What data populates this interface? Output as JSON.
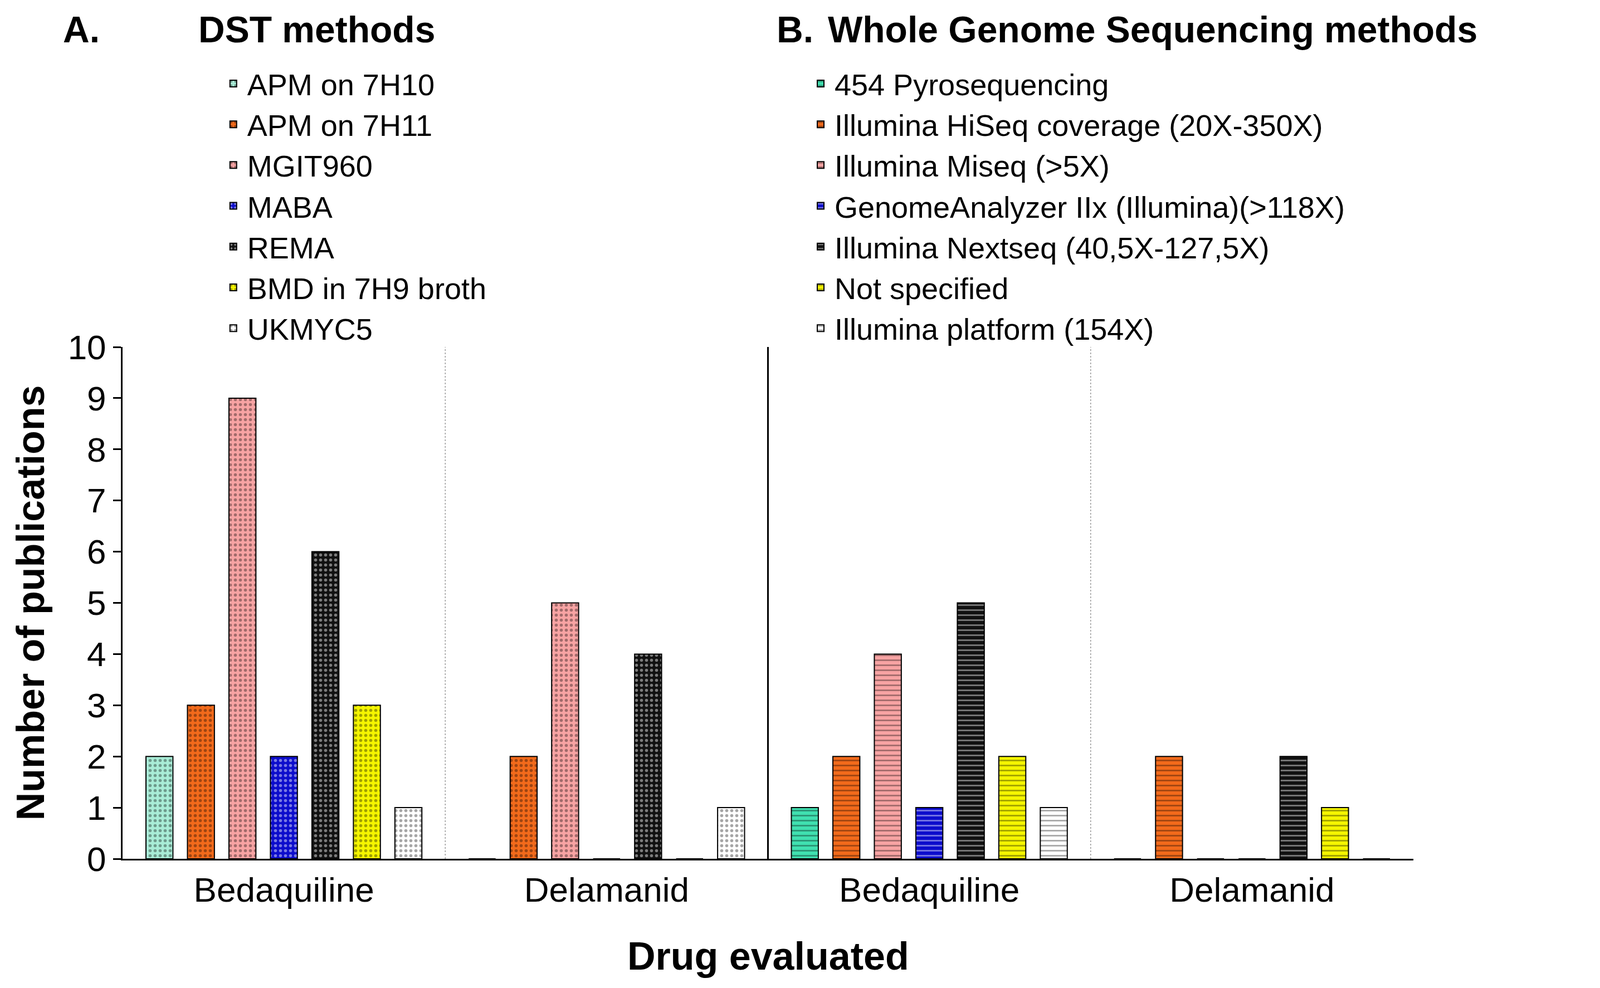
{
  "chart_data": {
    "type": "bar",
    "x_label": "Drug evaluated",
    "y_label": "Number of publications",
    "ylim": [
      0,
      10
    ],
    "yticks": [
      0,
      1,
      2,
      3,
      4,
      5,
      6,
      7,
      8,
      9,
      10
    ],
    "grid": false,
    "panels": [
      {
        "label": "A.",
        "title": "DST methods",
        "categories": [
          "Bedaquiline",
          "Delamanid"
        ],
        "series": [
          {
            "name": "APM on 7H10",
            "color": "#a8ecd6",
            "values": [
              2,
              0
            ]
          },
          {
            "name": "APM on 7H11",
            "color": "#f26a1b",
            "values": [
              3,
              2
            ]
          },
          {
            "name": "MGIT960",
            "color": "#f7a3a3",
            "values": [
              9,
              5
            ]
          },
          {
            "name": "MABA",
            "color": "#0d0dcc",
            "values": [
              2,
              0
            ]
          },
          {
            "name": "REMA",
            "color": "#111111",
            "values": [
              6,
              4
            ]
          },
          {
            "name": "BMD in 7H9 broth",
            "color": "#f5f500",
            "values": [
              3,
              0
            ]
          },
          {
            "name": "UKMYC5",
            "color": "#ffffff",
            "values": [
              1,
              1
            ]
          }
        ]
      },
      {
        "label": "B.",
        "title": "Whole Genome Sequencing methods",
        "categories": [
          "Bedaquiline",
          "Delamanid"
        ],
        "series": [
          {
            "name": "454 Pyrosequencing",
            "color": "#40e0b0",
            "values": [
              1,
              0
            ]
          },
          {
            "name": "Illumina HiSeq coverage (20X-350X)",
            "color": "#f26a1b",
            "values": [
              2,
              2
            ]
          },
          {
            "name": "Illumina Miseq (>5X)",
            "color": "#f7a3a3",
            "values": [
              4,
              0
            ]
          },
          {
            "name": "GenomeAnalyzer IIx (Illumina)(>118X)",
            "color": "#0d0dcc",
            "values": [
              1,
              0
            ]
          },
          {
            "name": "Illumina Nextseq (40,5X-127,5X)",
            "color": "#111111",
            "values": [
              5,
              2
            ]
          },
          {
            "name": "Not specified",
            "color": "#f5f500",
            "values": [
              2,
              1
            ]
          },
          {
            "name": "Illumina platform (154X)",
            "color": "#ffffff",
            "values": [
              1,
              0
            ]
          }
        ]
      }
    ]
  }
}
